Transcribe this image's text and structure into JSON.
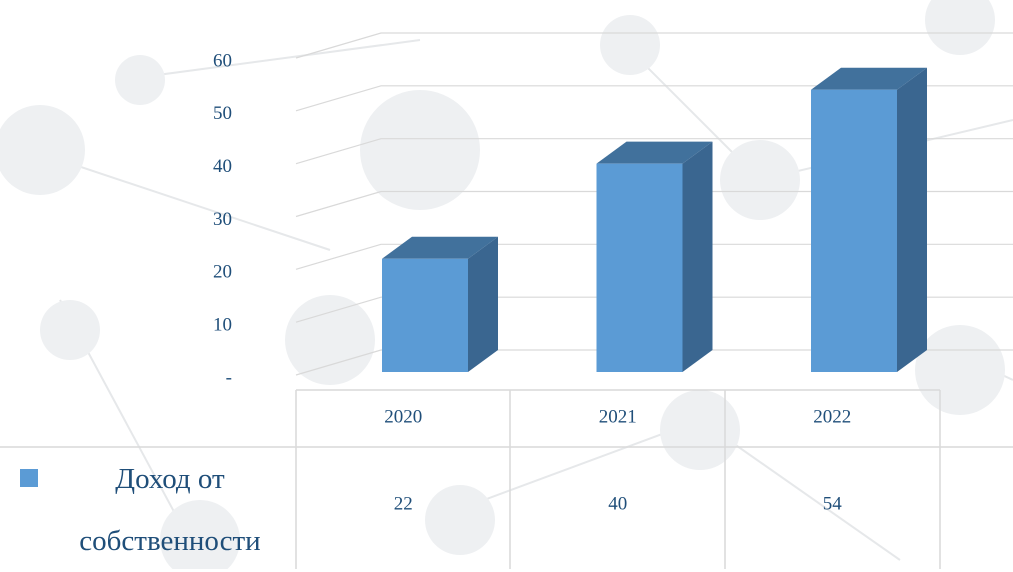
{
  "chart_data": {
    "type": "bar",
    "categories": [
      "2020",
      "2021",
      "2022"
    ],
    "series": [
      {
        "name": "Доход от собственности",
        "color": "#5b9bd5",
        "values": [
          22,
          40,
          54
        ]
      }
    ],
    "ylim": [
      0,
      60
    ],
    "yticks": [
      {
        "value": 0,
        "label": "-"
      },
      10,
      20,
      30,
      40,
      50,
      60
    ],
    "grid": true
  }
}
